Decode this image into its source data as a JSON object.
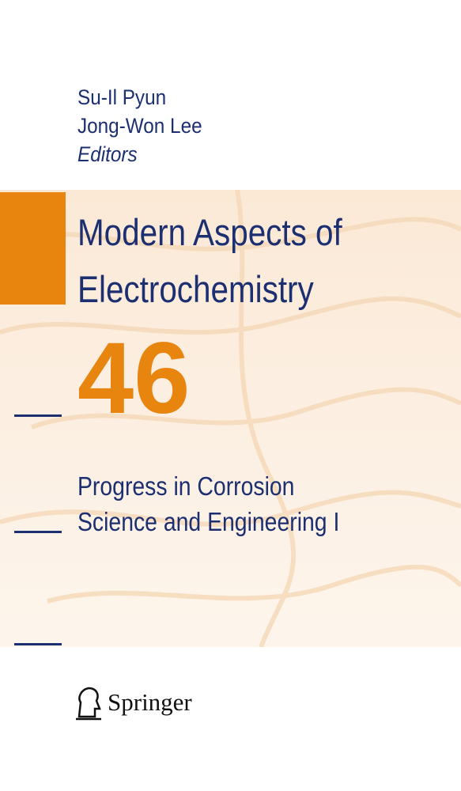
{
  "editors": [
    "Su-Il Pyun",
    "Jong-Won Lee"
  ],
  "editor_role": "Editors",
  "series_title": [
    "Modern Aspects of",
    "Electrochemistry"
  ],
  "volume": "46",
  "book_title": [
    "Progress in Corrosion",
    "Science and Engineering I"
  ],
  "publisher": "Springer"
}
